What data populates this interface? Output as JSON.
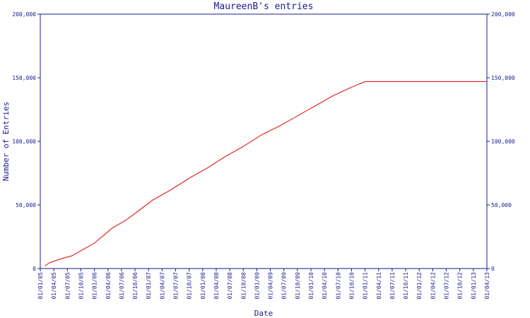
{
  "chart_data": {
    "type": "line",
    "title": "MaureenB's entries",
    "xlabel": "Date",
    "ylabel": "Number of Entries",
    "ylim": [
      0,
      200000
    ],
    "xlim": [
      "2005-01-01",
      "2013-04-01"
    ],
    "y_ticks": [
      0,
      50000,
      100000,
      150000,
      200000
    ],
    "y_tick_labels": [
      "0",
      "50,000",
      "100,000",
      "150,000",
      "200,000"
    ],
    "x_tick_labels": [
      "01/01/05",
      "01/04/05",
      "01/07/05",
      "01/10/05",
      "01/01/06",
      "01/04/06",
      "01/07/06",
      "01/10/06",
      "01/01/07",
      "01/04/07",
      "01/07/07",
      "01/10/07",
      "01/01/08",
      "01/04/08",
      "01/07/08",
      "01/10/08",
      "01/01/09",
      "01/04/09",
      "01/07/09",
      "01/10/09",
      "01/01/10",
      "01/04/10",
      "01/07/10",
      "01/10/10",
      "01/01/11",
      "01/04/11",
      "01/07/11",
      "01/10/11",
      "01/01/12",
      "01/04/12",
      "01/07/12",
      "01/10/12",
      "01/01/13",
      "01/04/13"
    ],
    "grid": false,
    "colors": {
      "axis": "#1a1a8c",
      "series": "#e00000",
      "background": "#ffffff"
    },
    "series": [
      {
        "x": [
          "2005-02-01",
          "2005-03-01",
          "2005-05-01",
          "2005-08-01",
          "2005-11-01",
          "2006-01-01",
          "2006-03-01",
          "2006-05-01",
          "2006-08-01",
          "2006-11-01",
          "2007-02-01",
          "2007-06-01",
          "2007-10-01",
          "2008-02-01",
          "2008-06-01",
          "2008-10-01",
          "2009-02-01",
          "2009-06-01",
          "2009-10-01",
          "2010-02-01",
          "2010-06-01",
          "2010-09-01",
          "2011-01-01",
          "2011-03-01",
          "2012-01-01",
          "2013-04-01"
        ],
        "y": [
          2000,
          4500,
          7000,
          10000,
          16000,
          20000,
          26000,
          32000,
          38000,
          46000,
          54000,
          62000,
          71000,
          79000,
          88000,
          96000,
          105000,
          112000,
          120000,
          128000,
          136000,
          141000,
          147000,
          147000,
          147000,
          147000
        ]
      }
    ]
  }
}
